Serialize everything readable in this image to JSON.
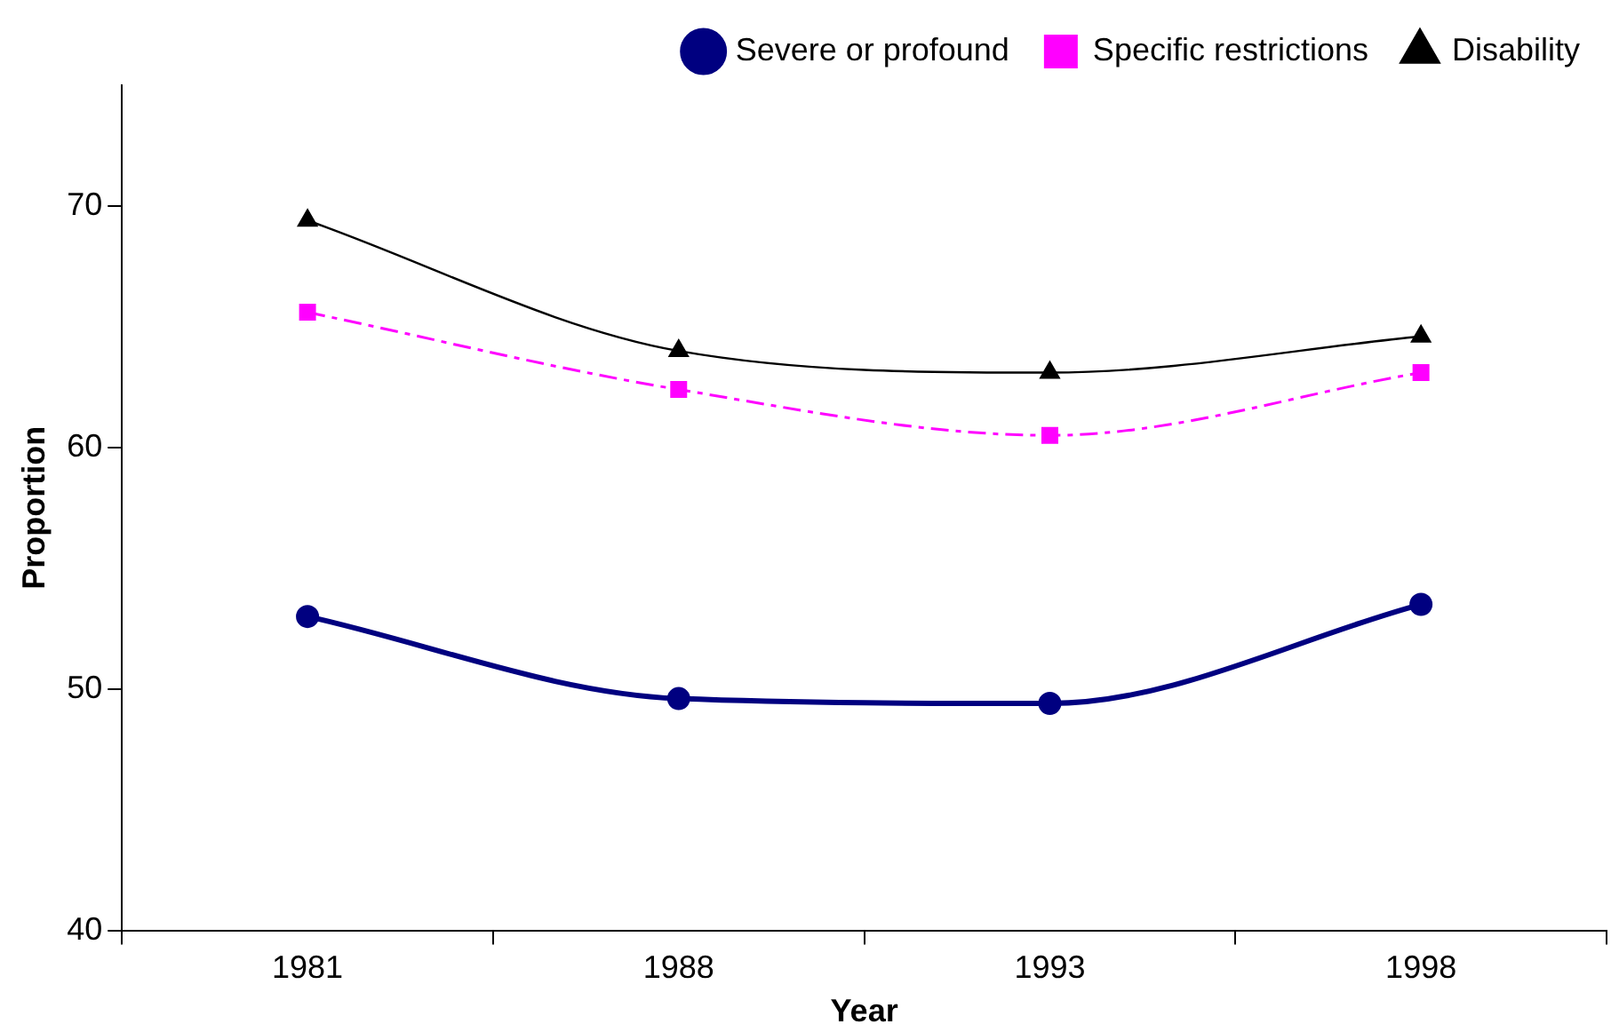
{
  "chart_data": {
    "type": "line",
    "xlabel": "Year",
    "ylabel": "Proportion",
    "categories": [
      "1981",
      "1988",
      "1993",
      "1998"
    ],
    "ylim": [
      40,
      75
    ],
    "yticks": [
      40,
      50,
      60,
      70
    ],
    "grid": false,
    "legend": "top",
    "series": [
      {
        "name": "Severe or profound",
        "color": "#000080",
        "values": [
          53.0,
          49.6,
          49.4,
          53.5
        ],
        "marker": "circle",
        "line_style": "solid"
      },
      {
        "name": "Specific restrictions",
        "color": "#ff00ff",
        "values": [
          65.6,
          62.4,
          60.5,
          63.1
        ],
        "marker": "square",
        "line_style": "dashed"
      },
      {
        "name": "Disability",
        "color": "#000000",
        "values": [
          69.4,
          64.0,
          63.1,
          64.6
        ],
        "marker": "triangle",
        "line_style": "solid"
      }
    ]
  }
}
